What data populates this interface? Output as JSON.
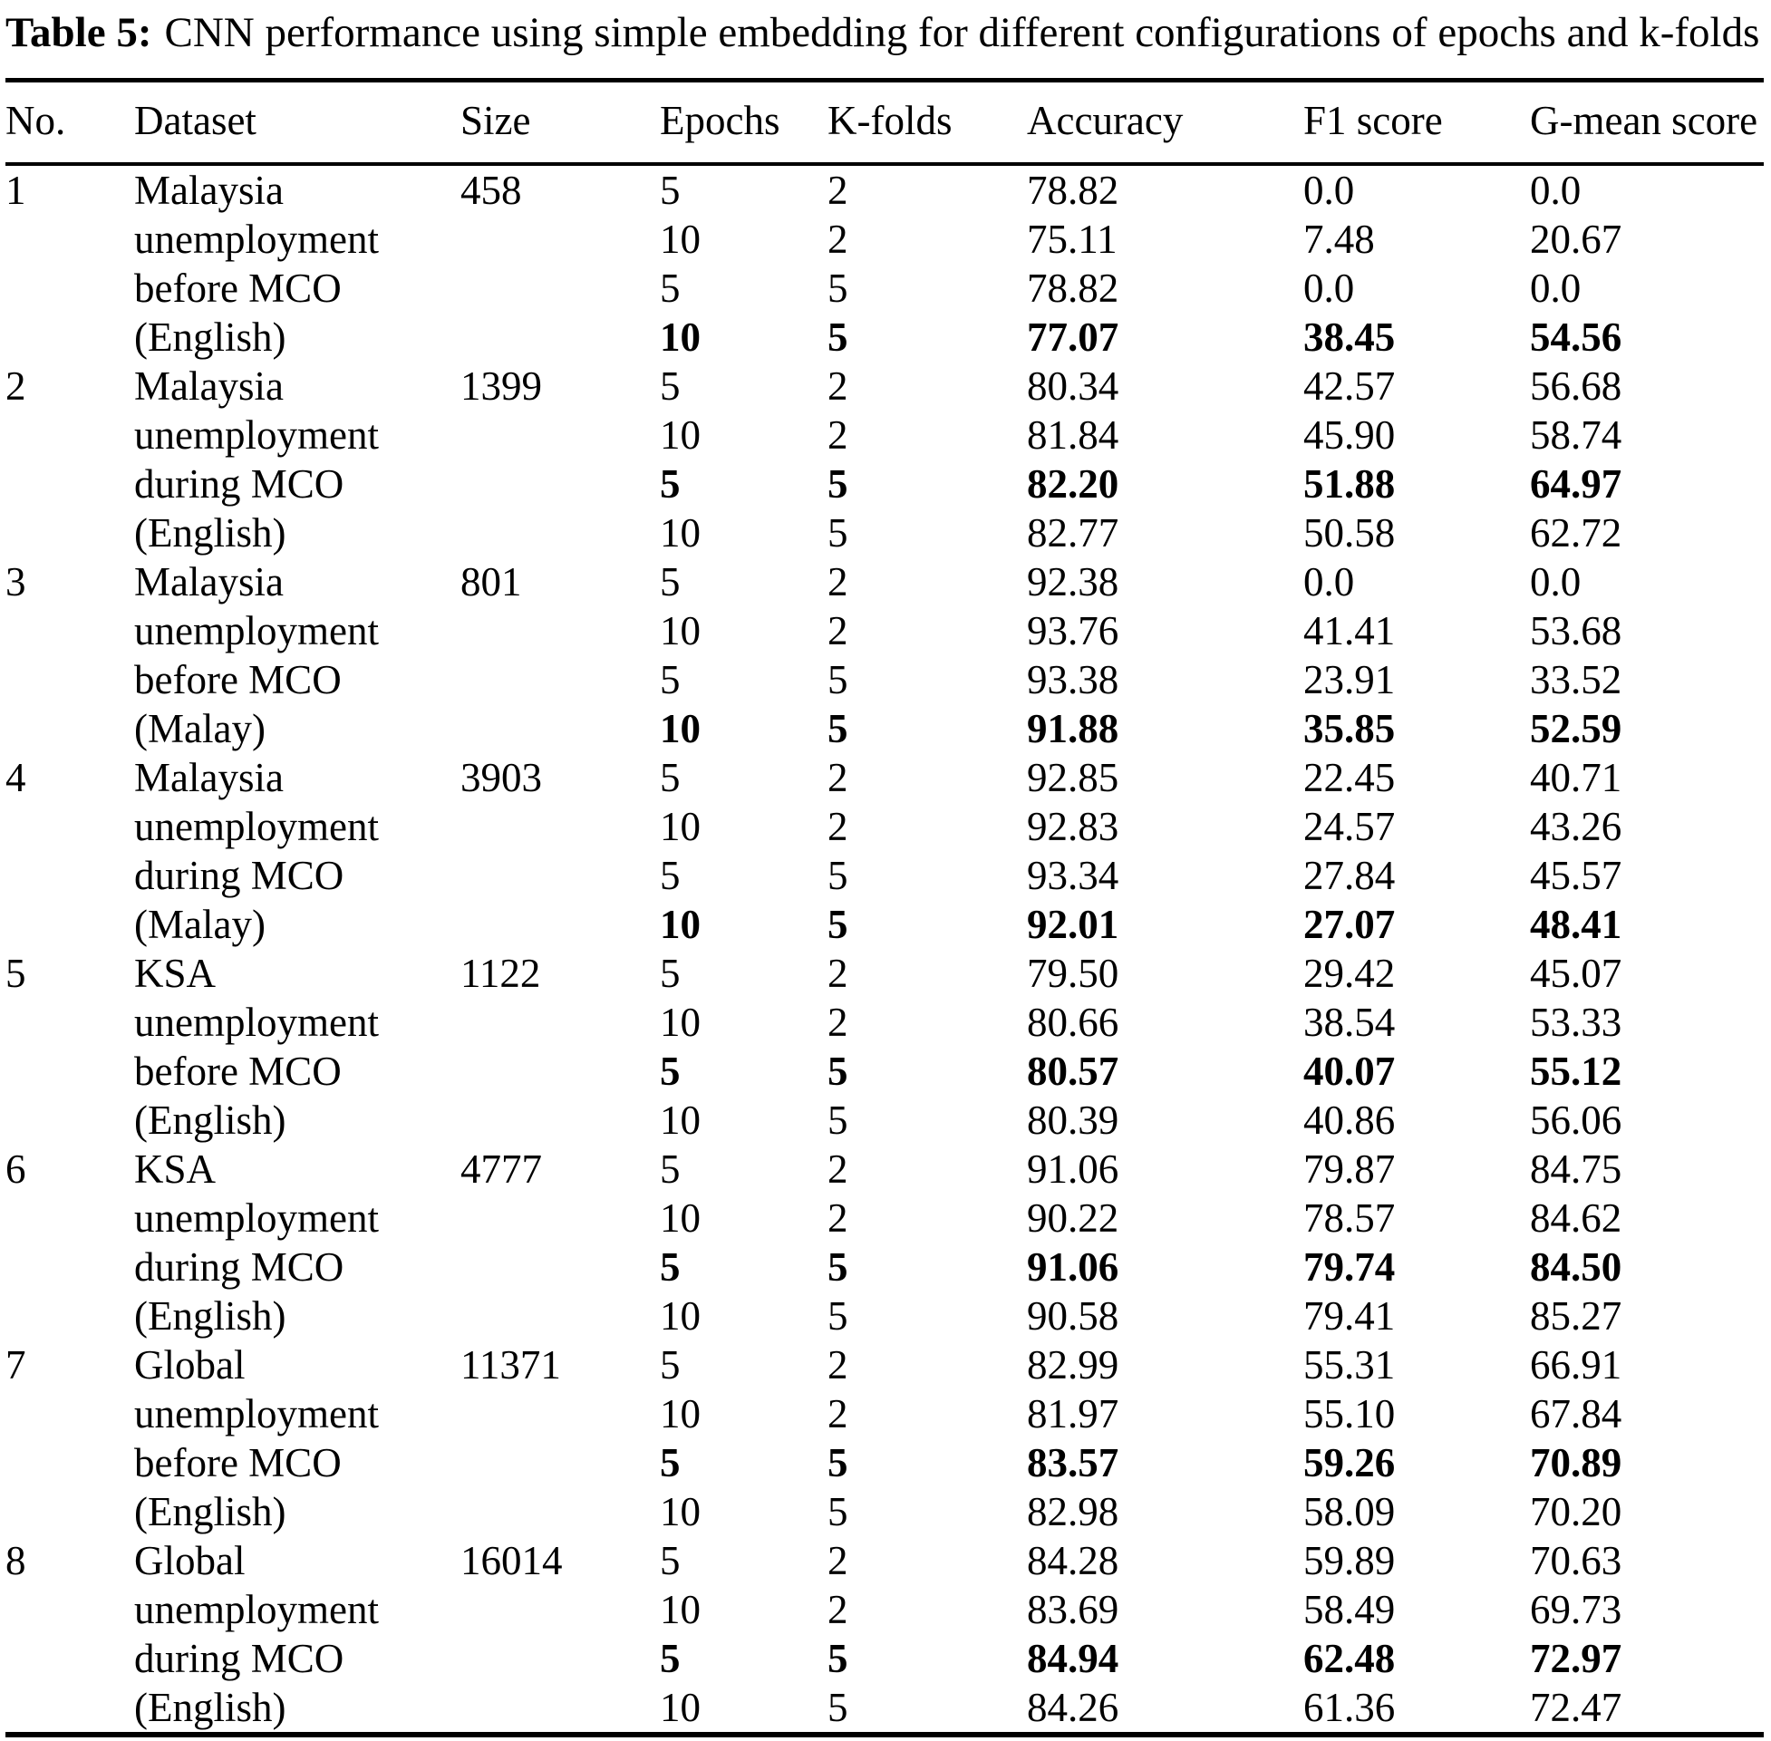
{
  "caption": {
    "label": "Table 5:",
    "text": "CNN performance using simple embedding for different configurations of epochs and k-folds"
  },
  "table": {
    "columns": [
      {
        "key": "no",
        "label": "No."
      },
      {
        "key": "dataset",
        "label": "Dataset"
      },
      {
        "key": "size",
        "label": "Size"
      },
      {
        "key": "epochs",
        "label": "Epochs"
      },
      {
        "key": "kfolds",
        "label": "K-folds"
      },
      {
        "key": "accuracy",
        "label": "Accuracy"
      },
      {
        "key": "f1",
        "label": "F1 score"
      },
      {
        "key": "gmean",
        "label": "G-mean score"
      }
    ],
    "groups": [
      {
        "no": "1",
        "dataset_lines": [
          "Malaysia",
          "unemployment",
          "before MCO",
          "(English)"
        ],
        "size": "458",
        "rows": [
          {
            "epochs": "5",
            "kfolds": "2",
            "accuracy": "78.82",
            "f1": "0.0",
            "gmean": "0.0",
            "bold": false
          },
          {
            "epochs": "10",
            "kfolds": "2",
            "accuracy": "75.11",
            "f1": "7.48",
            "gmean": "20.67",
            "bold": false
          },
          {
            "epochs": "5",
            "kfolds": "5",
            "accuracy": "78.82",
            "f1": "0.0",
            "gmean": "0.0",
            "bold": false
          },
          {
            "epochs": "10",
            "kfolds": "5",
            "accuracy": "77.07",
            "f1": "38.45",
            "gmean": "54.56",
            "bold": true
          }
        ]
      },
      {
        "no": "2",
        "dataset_lines": [
          "Malaysia",
          "unemployment",
          "during MCO",
          "(English)"
        ],
        "size": "1399",
        "rows": [
          {
            "epochs": "5",
            "kfolds": "2",
            "accuracy": "80.34",
            "f1": "42.57",
            "gmean": "56.68",
            "bold": false
          },
          {
            "epochs": "10",
            "kfolds": "2",
            "accuracy": "81.84",
            "f1": "45.90",
            "gmean": "58.74",
            "bold": false
          },
          {
            "epochs": "5",
            "kfolds": "5",
            "accuracy": "82.20",
            "f1": "51.88",
            "gmean": "64.97",
            "bold": true
          },
          {
            "epochs": "10",
            "kfolds": "5",
            "accuracy": "82.77",
            "f1": "50.58",
            "gmean": "62.72",
            "bold": false
          }
        ]
      },
      {
        "no": "3",
        "dataset_lines": [
          "Malaysia",
          "unemployment",
          "before MCO",
          "(Malay)"
        ],
        "size": "801",
        "rows": [
          {
            "epochs": "5",
            "kfolds": "2",
            "accuracy": "92.38",
            "f1": "0.0",
            "gmean": "0.0",
            "bold": false
          },
          {
            "epochs": "10",
            "kfolds": "2",
            "accuracy": "93.76",
            "f1": "41.41",
            "gmean": "53.68",
            "bold": false
          },
          {
            "epochs": "5",
            "kfolds": "5",
            "accuracy": "93.38",
            "f1": "23.91",
            "gmean": "33.52",
            "bold": false
          },
          {
            "epochs": "10",
            "kfolds": "5",
            "accuracy": "91.88",
            "f1": "35.85",
            "gmean": "52.59",
            "bold": true
          }
        ]
      },
      {
        "no": "4",
        "dataset_lines": [
          "Malaysia",
          "unemployment",
          "during MCO",
          "(Malay)"
        ],
        "size": "3903",
        "rows": [
          {
            "epochs": "5",
            "kfolds": "2",
            "accuracy": "92.85",
            "f1": "22.45",
            "gmean": "40.71",
            "bold": false
          },
          {
            "epochs": "10",
            "kfolds": "2",
            "accuracy": "92.83",
            "f1": "24.57",
            "gmean": "43.26",
            "bold": false
          },
          {
            "epochs": "5",
            "kfolds": "5",
            "accuracy": "93.34",
            "f1": "27.84",
            "gmean": "45.57",
            "bold": false
          },
          {
            "epochs": "10",
            "kfolds": "5",
            "accuracy": "92.01",
            "f1": "27.07",
            "gmean": "48.41",
            "bold": true
          }
        ]
      },
      {
        "no": "5",
        "dataset_lines": [
          "KSA",
          "unemployment",
          "before MCO",
          "(English)"
        ],
        "size": "1122",
        "rows": [
          {
            "epochs": "5",
            "kfolds": "2",
            "accuracy": "79.50",
            "f1": "29.42",
            "gmean": "45.07",
            "bold": false
          },
          {
            "epochs": "10",
            "kfolds": "2",
            "accuracy": "80.66",
            "f1": "38.54",
            "gmean": "53.33",
            "bold": false
          },
          {
            "epochs": "5",
            "kfolds": "5",
            "accuracy": "80.57",
            "f1": "40.07",
            "gmean": "55.12",
            "bold": true
          },
          {
            "epochs": "10",
            "kfolds": "5",
            "accuracy": "80.39",
            "f1": "40.86",
            "gmean": "56.06",
            "bold": false
          }
        ]
      },
      {
        "no": "6",
        "dataset_lines": [
          "KSA",
          "unemployment",
          "during MCO",
          "(English)"
        ],
        "size": "4777",
        "rows": [
          {
            "epochs": "5",
            "kfolds": "2",
            "accuracy": "91.06",
            "f1": "79.87",
            "gmean": "84.75",
            "bold": false
          },
          {
            "epochs": "10",
            "kfolds": "2",
            "accuracy": "90.22",
            "f1": "78.57",
            "gmean": "84.62",
            "bold": false
          },
          {
            "epochs": "5",
            "kfolds": "5",
            "accuracy": "91.06",
            "f1": "79.74",
            "gmean": "84.50",
            "bold": true
          },
          {
            "epochs": "10",
            "kfolds": "5",
            "accuracy": "90.58",
            "f1": "79.41",
            "gmean": "85.27",
            "bold": false
          }
        ]
      },
      {
        "no": "7",
        "dataset_lines": [
          "Global",
          "unemployment",
          "before MCO",
          "(English)"
        ],
        "size": "11371",
        "rows": [
          {
            "epochs": "5",
            "kfolds": "2",
            "accuracy": "82.99",
            "f1": "55.31",
            "gmean": "66.91",
            "bold": false
          },
          {
            "epochs": "10",
            "kfolds": "2",
            "accuracy": "81.97",
            "f1": "55.10",
            "gmean": "67.84",
            "bold": false
          },
          {
            "epochs": "5",
            "kfolds": "5",
            "accuracy": "83.57",
            "f1": "59.26",
            "gmean": "70.89",
            "bold": true
          },
          {
            "epochs": "10",
            "kfolds": "5",
            "accuracy": "82.98",
            "f1": "58.09",
            "gmean": "70.20",
            "bold": false
          }
        ]
      },
      {
        "no": "8",
        "dataset_lines": [
          "Global",
          "unemployment",
          "during MCO",
          "(English)"
        ],
        "size": "16014",
        "rows": [
          {
            "epochs": "5",
            "kfolds": "2",
            "accuracy": "84.28",
            "f1": "59.89",
            "gmean": "70.63",
            "bold": false
          },
          {
            "epochs": "10",
            "kfolds": "2",
            "accuracy": "83.69",
            "f1": "58.49",
            "gmean": "69.73",
            "bold": false
          },
          {
            "epochs": "5",
            "kfolds": "5",
            "accuracy": "84.94",
            "f1": "62.48",
            "gmean": "72.97",
            "bold": true
          },
          {
            "epochs": "10",
            "kfolds": "5",
            "accuracy": "84.26",
            "f1": "61.36",
            "gmean": "72.47",
            "bold": false
          }
        ]
      }
    ]
  }
}
